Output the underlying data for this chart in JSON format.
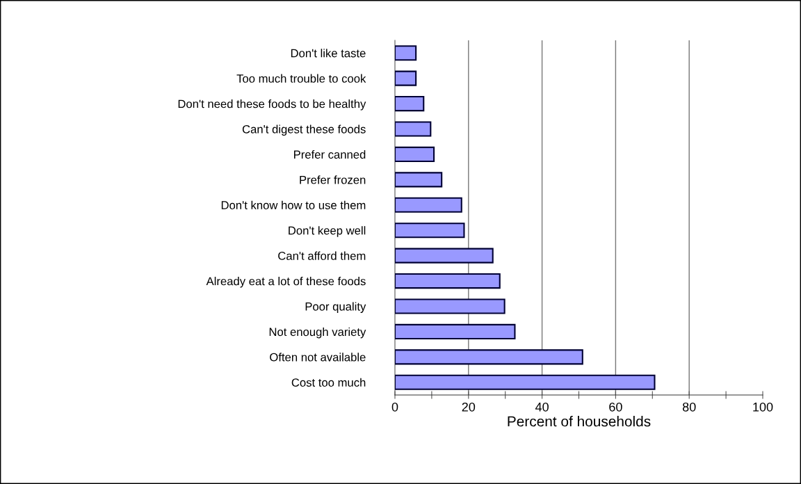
{
  "chart_data": {
    "type": "bar",
    "orientation": "horizontal",
    "xlabel": "Percent of households",
    "categories": [
      "Don't like taste",
      "Too much trouble to cook",
      "Don't need these foods to be healthy",
      "Can't digest these foods",
      "Prefer canned",
      "Prefer frozen",
      "Don't know how to use them",
      "Don't keep well",
      "Can't afford them",
      "Already eat a lot of these foods",
      "Poor quality",
      "Not enough variety",
      "Often not available",
      "Cost too much"
    ],
    "values": [
      5.7,
      5.7,
      7.8,
      9.7,
      10.6,
      12.7,
      18.1,
      18.8,
      26.6,
      28.5,
      29.8,
      32.6,
      51,
      70.6
    ],
    "color": "#9999ff",
    "xlim": [
      0,
      100
    ],
    "xticks": [
      0,
      {
        "value": 10,
        "label": null
      },
      20,
      {
        "value": 30,
        "label": null
      },
      40,
      {
        "value": 50,
        "label": null
      },
      60,
      {
        "value": 70,
        "label": null
      },
      80,
      {
        "value": 90,
        "label": null
      },
      100
    ],
    "grid": "x"
  }
}
